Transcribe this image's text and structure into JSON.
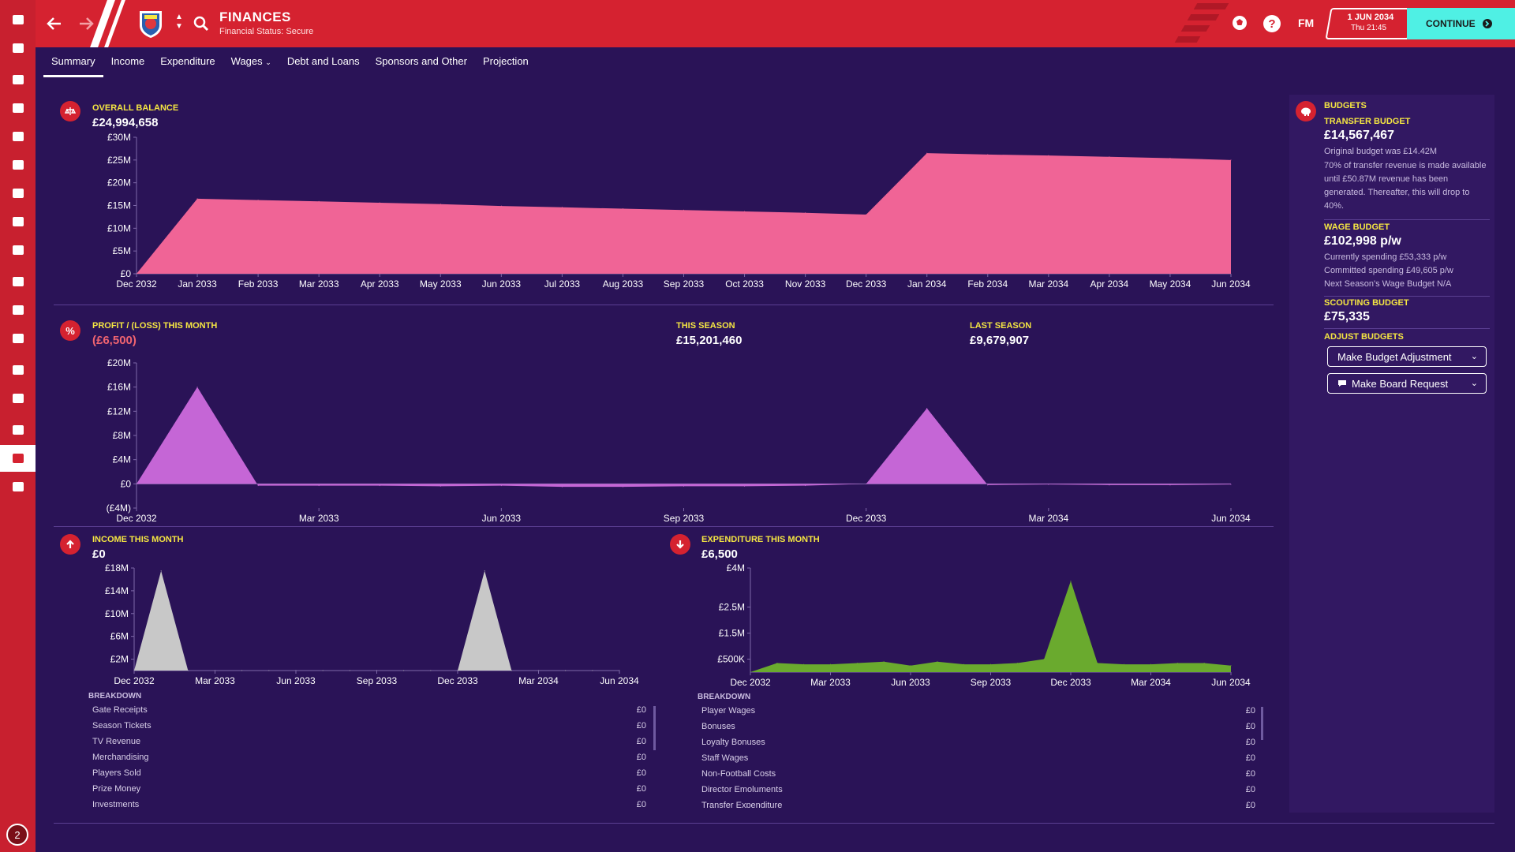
{
  "header": {
    "title": "FINANCES",
    "subtitle": "Financial Status: Secure",
    "fm_label": "FM",
    "date": "1 JUN 2034",
    "time": "Thu 21:45",
    "continue_label": "CONTINUE"
  },
  "sidebar": {
    "items": [
      "home-icon",
      "inbox-icon",
      "squad-icon",
      "tactics-icon",
      "dynamics-icon",
      "reports-icon",
      "staff-icon",
      "training-icon",
      "medical-icon",
      "schedule-icon",
      "competitions-icon",
      "scouting-icon",
      "transfers-icon",
      "club-vision-icon",
      "dev-centre-icon",
      "finances-icon",
      "data-hub-icon"
    ],
    "bottom_badge": "2"
  },
  "tabs": [
    {
      "label": "Summary",
      "active": true
    },
    {
      "label": "Income"
    },
    {
      "label": "Expenditure"
    },
    {
      "label": "Wages",
      "dropdown": true
    },
    {
      "label": "Debt and Loans"
    },
    {
      "label": "Sponsors and Other"
    },
    {
      "label": "Projection"
    }
  ],
  "overall_balance": {
    "label": "OVERALL BALANCE",
    "value": "£24,994,658"
  },
  "profit": {
    "label": "PROFIT / (LOSS) THIS MONTH",
    "value": "(£6,500)",
    "this_season_label": "THIS SEASON",
    "this_season_value": "£15,201,460",
    "last_season_label": "LAST SEASON",
    "last_season_value": "£9,679,907"
  },
  "income": {
    "label": "INCOME THIS MONTH",
    "value": "£0",
    "breakdown_title": "BREAKDOWN",
    "rows": [
      {
        "name": "Gate Receipts",
        "value": "£0"
      },
      {
        "name": "Season Tickets",
        "value": "£0"
      },
      {
        "name": "TV Revenue",
        "value": "£0"
      },
      {
        "name": "Merchandising",
        "value": "£0"
      },
      {
        "name": "Players Sold",
        "value": "£0"
      },
      {
        "name": "Prize Money",
        "value": "£0"
      },
      {
        "name": "Investments",
        "value": "£0"
      }
    ]
  },
  "expenditure": {
    "label": "EXPENDITURE THIS MONTH",
    "value": "£6,500",
    "breakdown_title": "BREAKDOWN",
    "rows": [
      {
        "name": "Player Wages",
        "value": "£0"
      },
      {
        "name": "Bonuses",
        "value": "£0"
      },
      {
        "name": "Loyalty Bonuses",
        "value": "£0"
      },
      {
        "name": "Staff Wages",
        "value": "£0"
      },
      {
        "name": "Non-Football Costs",
        "value": "£0"
      },
      {
        "name": "Director Emoluments",
        "value": "£0"
      },
      {
        "name": "Transfer Expenditure",
        "value": "£0"
      }
    ]
  },
  "budgets": {
    "title": "BUDGETS",
    "transfer_label": "TRANSFER BUDGET",
    "transfer_value": "£14,567,467",
    "transfer_original": "Original budget was £14.42M",
    "transfer_note": "70% of transfer revenue is made available until £50.87M revenue has been generated. Thereafter, this will drop to 40%.",
    "wage_label": "WAGE BUDGET",
    "wage_value": "£102,998 p/w",
    "wage_current": "Currently spending £53,333 p/w",
    "wage_committed": "Committed spending £49,605 p/w",
    "wage_next": "Next Season's Wage Budget N/A",
    "scouting_label": "SCOUTING BUDGET",
    "scouting_value": "£75,335",
    "adjust_label": "ADJUST BUDGETS",
    "adjust_button": "Make Budget Adjustment",
    "request_button": "Make Board Request"
  },
  "chart_data": [
    {
      "type": "area",
      "title": "OVERALL BALANCE",
      "color": "#f06496",
      "x": [
        "Dec 2032",
        "Jan 2033",
        "Feb 2033",
        "Mar 2033",
        "Apr 2033",
        "May 2033",
        "Jun 2033",
        "Jul 2033",
        "Aug 2033",
        "Sep 2033",
        "Oct 2033",
        "Nov 2033",
        "Dec 2033",
        "Jan 2034",
        "Feb 2034",
        "Mar 2034",
        "Apr 2034",
        "May 2034",
        "Jun 2034"
      ],
      "y": [
        0,
        16.5,
        16.2,
        15.9,
        15.6,
        15.3,
        14.9,
        14.6,
        14.3,
        14.0,
        13.7,
        13.4,
        13.0,
        26.5,
        26.2,
        26.0,
        25.7,
        25.4,
        25.0
      ],
      "y_ticks": [
        "£0",
        "£5M",
        "£10M",
        "£15M",
        "£20M",
        "£25M",
        "£30M"
      ],
      "ylim": [
        0,
        30
      ]
    },
    {
      "type": "area",
      "title": "PROFIT / (LOSS) THIS MONTH",
      "color": "#c566d6",
      "x": [
        "Dec 2032",
        "Jan 2033",
        "Feb 2033",
        "Mar 2033",
        "Apr 2033",
        "May 2033",
        "Jun 2033",
        "Jul 2033",
        "Aug 2033",
        "Sep 2033",
        "Oct 2033",
        "Nov 2033",
        "Dec 2033",
        "Jan 2034",
        "Feb 2034",
        "Mar 2034",
        "Apr 2034",
        "May 2034",
        "Jun 2034"
      ],
      "x_tick_labels": [
        "Dec 2032",
        "Mar 2033",
        "Jun 2033",
        "Sep 2033",
        "Dec 2033",
        "Mar 2034",
        "Jun 2034"
      ],
      "y": [
        0,
        16.0,
        -0.3,
        -0.3,
        -0.3,
        -0.4,
        -0.3,
        -0.5,
        -0.5,
        -0.4,
        -0.4,
        -0.3,
        0,
        12.5,
        -0.2,
        -0.1,
        -0.2,
        -0.2,
        -0.1
      ],
      "y_ticks": [
        "(£4M)",
        "£0",
        "£4M",
        "£8M",
        "£12M",
        "£16M",
        "£20M"
      ],
      "ylim": [
        -4,
        20
      ]
    },
    {
      "type": "area",
      "title": "INCOME THIS MONTH",
      "color": "#c8c8c8",
      "x": [
        "Dec 2032",
        "Jan 2033",
        "Feb 2033",
        "Mar 2033",
        "Apr 2033",
        "May 2033",
        "Jun 2033",
        "Jul 2033",
        "Aug 2033",
        "Sep 2033",
        "Oct 2033",
        "Nov 2033",
        "Dec 2033",
        "Jan 2034",
        "Feb 2034",
        "Mar 2034",
        "Apr 2034",
        "May 2034",
        "Jun 2034"
      ],
      "x_tick_labels": [
        "Dec 2032",
        "Mar 2033",
        "Jun 2033",
        "Sep 2033",
        "Dec 2033",
        "Mar 2034",
        "Jun 2034"
      ],
      "y": [
        0,
        17.5,
        0,
        0,
        0,
        0,
        0,
        0,
        0,
        0,
        0,
        0,
        0,
        17.5,
        0,
        0,
        0,
        0,
        0
      ],
      "y_ticks": [
        "£2M",
        "£6M",
        "£10M",
        "£14M",
        "£18M"
      ],
      "ylim": [
        0,
        18
      ]
    },
    {
      "type": "area",
      "title": "EXPENDITURE THIS MONTH",
      "color": "#6aaa2e",
      "x": [
        "Dec 2032",
        "Jan 2033",
        "Feb 2033",
        "Mar 2033",
        "Apr 2033",
        "May 2033",
        "Jun 2033",
        "Jul 2033",
        "Aug 2033",
        "Sep 2033",
        "Oct 2033",
        "Nov 2033",
        "Dec 2033",
        "Jan 2034",
        "Feb 2034",
        "Mar 2034",
        "Apr 2034",
        "May 2034",
        "Jun 2034"
      ],
      "x_tick_labels": [
        "Dec 2032",
        "Mar 2033",
        "Jun 2033",
        "Sep 2033",
        "Dec 2033",
        "Mar 2034",
        "Jun 2034"
      ],
      "y": [
        0.0,
        0.35,
        0.3,
        0.3,
        0.35,
        0.4,
        0.25,
        0.4,
        0.3,
        0.3,
        0.35,
        0.5,
        3.5,
        0.35,
        0.3,
        0.3,
        0.35,
        0.35,
        0.25
      ],
      "y_ticks": [
        "£500K",
        "£1.5M",
        "£2.5M",
        "£4M"
      ],
      "ylim": [
        0,
        4
      ]
    }
  ]
}
